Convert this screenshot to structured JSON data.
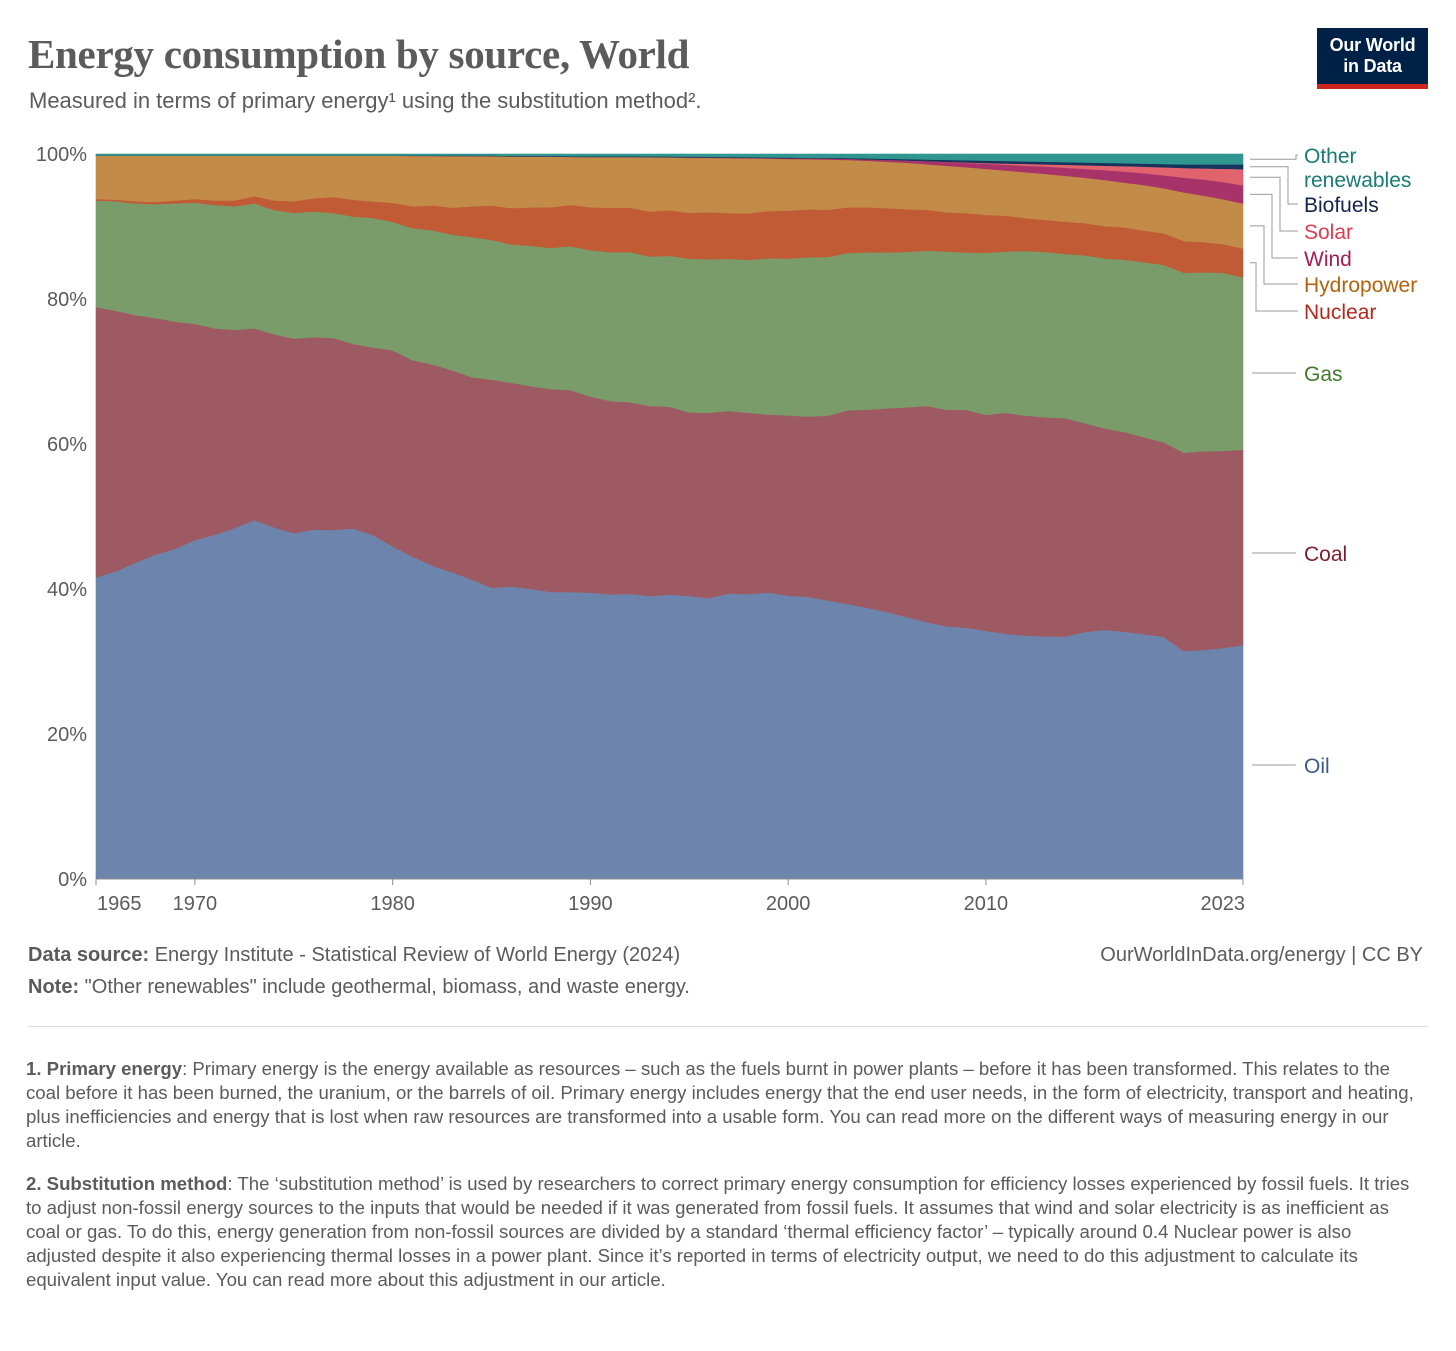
{
  "header": {
    "title": "Energy consumption by source, World",
    "subtitle": "Measured in terms of primary energy¹ using the substitution method².",
    "logo_line1": "Our World",
    "logo_line2": "in Data"
  },
  "footer": {
    "source_label": "Data source:",
    "source_text": "Energy Institute - Statistical Review of World Energy (2024)",
    "note_label": "Note:",
    "note_text": "\"Other renewables\" include geothermal, biomass, and waste energy.",
    "credit": "OurWorldInData.org/energy | CC BY"
  },
  "footnotes": [
    {
      "label": "1. Primary energy",
      "text": ": Primary energy is the energy available as resources – such as the fuels burnt in power plants – before it has been transformed. This relates to the coal before it has been burned, the uranium, or the barrels of oil. Primary energy includes energy that the end user needs, in the form of electricity, transport and heating, plus inefficiencies and energy that is lost when raw resources are transformed into a usable form. You can read more on the different ways of measuring energy in our article."
    },
    {
      "label": "2. Substitution method",
      "text": ": The ‘substitution method’ is used by researchers to correct primary energy consumption for efficiency losses experienced by fossil fuels. It tries to adjust non-fossil energy sources to the inputs that would be needed if it was generated from fossil fuels. It assumes that wind and solar electricity is as inefficient as coal or gas. To do this, energy generation from non-fossil sources are divided by a standard ‘thermal efficiency factor’ – typically around 0.4 Nuclear power is also adjusted despite it also experiencing thermal losses in a power plant. Since it’s reported in terms of electricity output, we need to do this adjustment to calculate its equivalent input value. You can read more about this adjustment in our article."
    }
  ],
  "chart_data": {
    "type": "area",
    "stacked": true,
    "unit": "%",
    "ylim": [
      0,
      100
    ],
    "y_ticks": [
      0,
      20,
      40,
      60,
      80,
      100
    ],
    "y_tick_labels": [
      "0%",
      "20%",
      "40%",
      "60%",
      "80%",
      "100%"
    ],
    "x_ticks": [
      1965,
      1970,
      1980,
      1990,
      2000,
      2010,
      2023
    ],
    "x_tick_labels": [
      "1965",
      "1970",
      "1980",
      "1990",
      "2000",
      "2010",
      "2023"
    ],
    "xlim": [
      1965,
      2023
    ],
    "grid": true,
    "legend_placement": "right",
    "x": [
      1965,
      1966,
      1967,
      1968,
      1969,
      1970,
      1971,
      1972,
      1973,
      1974,
      1975,
      1976,
      1977,
      1978,
      1979,
      1980,
      1981,
      1982,
      1983,
      1984,
      1985,
      1986,
      1987,
      1988,
      1989,
      1990,
      1991,
      1992,
      1993,
      1994,
      1995,
      1996,
      1997,
      1998,
      1999,
      2000,
      2001,
      2002,
      2003,
      2004,
      2005,
      2006,
      2007,
      2008,
      2009,
      2010,
      2011,
      2012,
      2013,
      2014,
      2015,
      2016,
      2017,
      2018,
      2019,
      2020,
      2021,
      2022,
      2023
    ],
    "series": [
      {
        "name": "Oil",
        "color": "#6d85ad",
        "label_color": "#3a5a8c",
        "values": [
          41.6,
          42.4,
          43.6,
          44.7,
          45.5,
          46.7,
          47.4,
          48.3,
          49.4,
          48.4,
          47.6,
          48.1,
          48.0,
          48.2,
          47.3,
          45.6,
          44.2,
          43.0,
          42.1,
          41.0,
          40.0,
          40.2,
          39.9,
          39.6,
          39.5,
          39.3,
          39.2,
          39.3,
          39.0,
          39.2,
          39.0,
          38.8,
          39.4,
          39.3,
          39.4,
          39.0,
          38.8,
          38.3,
          37.8,
          37.4,
          36.8,
          36.1,
          35.4,
          34.8,
          34.5,
          34.0,
          33.6,
          33.4,
          33.2,
          33.2,
          33.7,
          34.0,
          33.7,
          33.3,
          32.9,
          30.9,
          31.1,
          31.4,
          31.7
        ]
      },
      {
        "name": "Coal",
        "color": "#9e5a62",
        "label_color": "#7c1d2c",
        "values": [
          37.3,
          35.9,
          34.1,
          32.6,
          31.3,
          29.8,
          28.4,
          27.3,
          26.4,
          26.6,
          26.8,
          26.5,
          26.4,
          25.4,
          25.8,
          26.9,
          26.9,
          27.6,
          27.7,
          27.7,
          28.6,
          28.0,
          27.9,
          28.0,
          27.8,
          26.9,
          26.6,
          26.4,
          26.2,
          25.9,
          25.3,
          25.6,
          25.2,
          25.0,
          24.5,
          24.8,
          24.8,
          25.4,
          26.6,
          27.3,
          28.1,
          28.9,
          29.8,
          29.8,
          29.9,
          29.6,
          30.3,
          30.2,
          30.0,
          29.9,
          28.5,
          27.5,
          27.2,
          26.8,
          26.4,
          26.9,
          27.0,
          26.8,
          26.5
        ]
      },
      {
        "name": "Gas",
        "color": "#7a9c6a",
        "label_color": "#3f7a2c",
        "values": [
          14.7,
          15.1,
          15.4,
          15.7,
          16.3,
          16.7,
          17.0,
          17.0,
          17.2,
          17.1,
          17.3,
          17.3,
          17.2,
          17.5,
          17.8,
          17.6,
          18.1,
          18.4,
          18.6,
          19.2,
          19.2,
          19.0,
          19.3,
          19.5,
          19.8,
          20.1,
          20.5,
          20.7,
          20.6,
          20.8,
          21.2,
          21.2,
          21.0,
          21.1,
          21.5,
          21.6,
          21.9,
          21.8,
          21.6,
          21.7,
          21.5,
          21.4,
          21.4,
          21.8,
          21.6,
          22.2,
          22.1,
          22.6,
          22.6,
          22.5,
          22.9,
          23.2,
          23.5,
          23.8,
          24.1,
          24.4,
          24.3,
          24.2,
          23.4
        ]
      },
      {
        "name": "Nuclear",
        "color": "#c05b36",
        "label_color": "#b2281f",
        "values": [
          0.2,
          0.2,
          0.3,
          0.3,
          0.4,
          0.5,
          0.6,
          0.8,
          1.0,
          1.3,
          1.6,
          1.8,
          2.2,
          2.3,
          2.3,
          2.6,
          3.0,
          3.4,
          3.7,
          4.2,
          4.7,
          5.0,
          5.3,
          5.6,
          5.7,
          5.9,
          6.1,
          6.1,
          6.2,
          6.3,
          6.3,
          6.5,
          6.3,
          6.4,
          6.5,
          6.6,
          6.6,
          6.5,
          6.3,
          6.2,
          6.1,
          5.9,
          5.6,
          5.4,
          5.4,
          5.2,
          4.9,
          4.5,
          4.4,
          4.4,
          4.4,
          4.4,
          4.4,
          4.3,
          4.3,
          4.3,
          4.1,
          3.9,
          3.9
        ]
      },
      {
        "name": "Hydropower",
        "color": "#c38b48",
        "label_color": "#b3620f",
        "values": [
          6.0,
          6.1,
          6.3,
          6.4,
          6.2,
          6.0,
          6.2,
          6.2,
          5.6,
          6.2,
          6.3,
          5.9,
          5.7,
          6.1,
          6.3,
          6.5,
          6.9,
          6.8,
          7.1,
          6.9,
          6.8,
          7.1,
          7.0,
          7.0,
          6.6,
          6.9,
          7.0,
          7.0,
          7.5,
          7.3,
          7.6,
          7.5,
          7.6,
          7.6,
          7.2,
          7.1,
          6.9,
          6.9,
          6.5,
          6.4,
          6.4,
          6.4,
          6.3,
          6.4,
          6.3,
          6.3,
          6.2,
          6.3,
          6.3,
          6.3,
          6.2,
          6.3,
          6.1,
          6.2,
          6.1,
          6.6,
          6.3,
          6.1,
          6.1
        ]
      },
      {
        "name": "Wind",
        "color": "#a8326a",
        "label_color": "#a11d52",
        "values": [
          0,
          0,
          0,
          0,
          0,
          0,
          0,
          0,
          0,
          0,
          0,
          0,
          0,
          0,
          0,
          0,
          0,
          0,
          0,
          0,
          0,
          0,
          0,
          0,
          0,
          0,
          0,
          0,
          0,
          0,
          0.05,
          0.05,
          0.06,
          0.07,
          0.08,
          0.1,
          0.1,
          0.13,
          0.15,
          0.2,
          0.25,
          0.3,
          0.4,
          0.5,
          0.6,
          0.7,
          0.8,
          0.9,
          1.0,
          1.1,
          1.2,
          1.35,
          1.5,
          1.6,
          1.75,
          2.0,
          2.2,
          2.35,
          2.45
        ]
      },
      {
        "name": "Solar",
        "color": "#e0636e",
        "label_color": "#de3d50",
        "values": [
          0,
          0,
          0,
          0,
          0,
          0,
          0,
          0,
          0,
          0,
          0,
          0,
          0,
          0,
          0,
          0,
          0,
          0,
          0,
          0,
          0,
          0,
          0,
          0,
          0,
          0,
          0,
          0,
          0,
          0,
          0,
          0,
          0,
          0,
          0,
          0,
          0,
          0,
          0,
          0,
          0.01,
          0.02,
          0.03,
          0.04,
          0.06,
          0.1,
          0.17,
          0.25,
          0.3,
          0.4,
          0.5,
          0.6,
          0.75,
          0.9,
          1.1,
          1.3,
          1.5,
          1.8,
          2.2
        ]
      },
      {
        "name": "Biofuels",
        "color": "#16335c",
        "label_color": "#14234c",
        "values": [
          0,
          0,
          0,
          0,
          0,
          0,
          0,
          0,
          0,
          0,
          0,
          0,
          0,
          0,
          0,
          0,
          0.05,
          0.05,
          0.06,
          0.07,
          0.08,
          0.08,
          0.09,
          0.09,
          0.09,
          0.1,
          0.1,
          0.1,
          0.1,
          0.1,
          0.1,
          0.1,
          0.1,
          0.1,
          0.1,
          0.1,
          0.1,
          0.1,
          0.12,
          0.13,
          0.15,
          0.18,
          0.22,
          0.27,
          0.3,
          0.33,
          0.34,
          0.35,
          0.36,
          0.37,
          0.38,
          0.39,
          0.4,
          0.42,
          0.45,
          0.5,
          0.55,
          0.6,
          0.65
        ]
      },
      {
        "name": "Other renewables",
        "color": "#2f9690",
        "label_color": "#197b75",
        "values": [
          0.2,
          0.2,
          0.2,
          0.2,
          0.2,
          0.2,
          0.2,
          0.2,
          0.2,
          0.2,
          0.2,
          0.2,
          0.2,
          0.2,
          0.2,
          0.2,
          0.2,
          0.2,
          0.2,
          0.2,
          0.2,
          0.25,
          0.25,
          0.25,
          0.3,
          0.3,
          0.3,
          0.3,
          0.32,
          0.34,
          0.36,
          0.38,
          0.4,
          0.42,
          0.45,
          0.48,
          0.5,
          0.52,
          0.55,
          0.6,
          0.65,
          0.7,
          0.75,
          0.8,
          0.85,
          0.9,
          0.95,
          1.0,
          1.05,
          1.1,
          1.15,
          1.2,
          1.25,
          1.3,
          1.35,
          1.4,
          1.4,
          1.4,
          1.4
        ]
      }
    ]
  }
}
